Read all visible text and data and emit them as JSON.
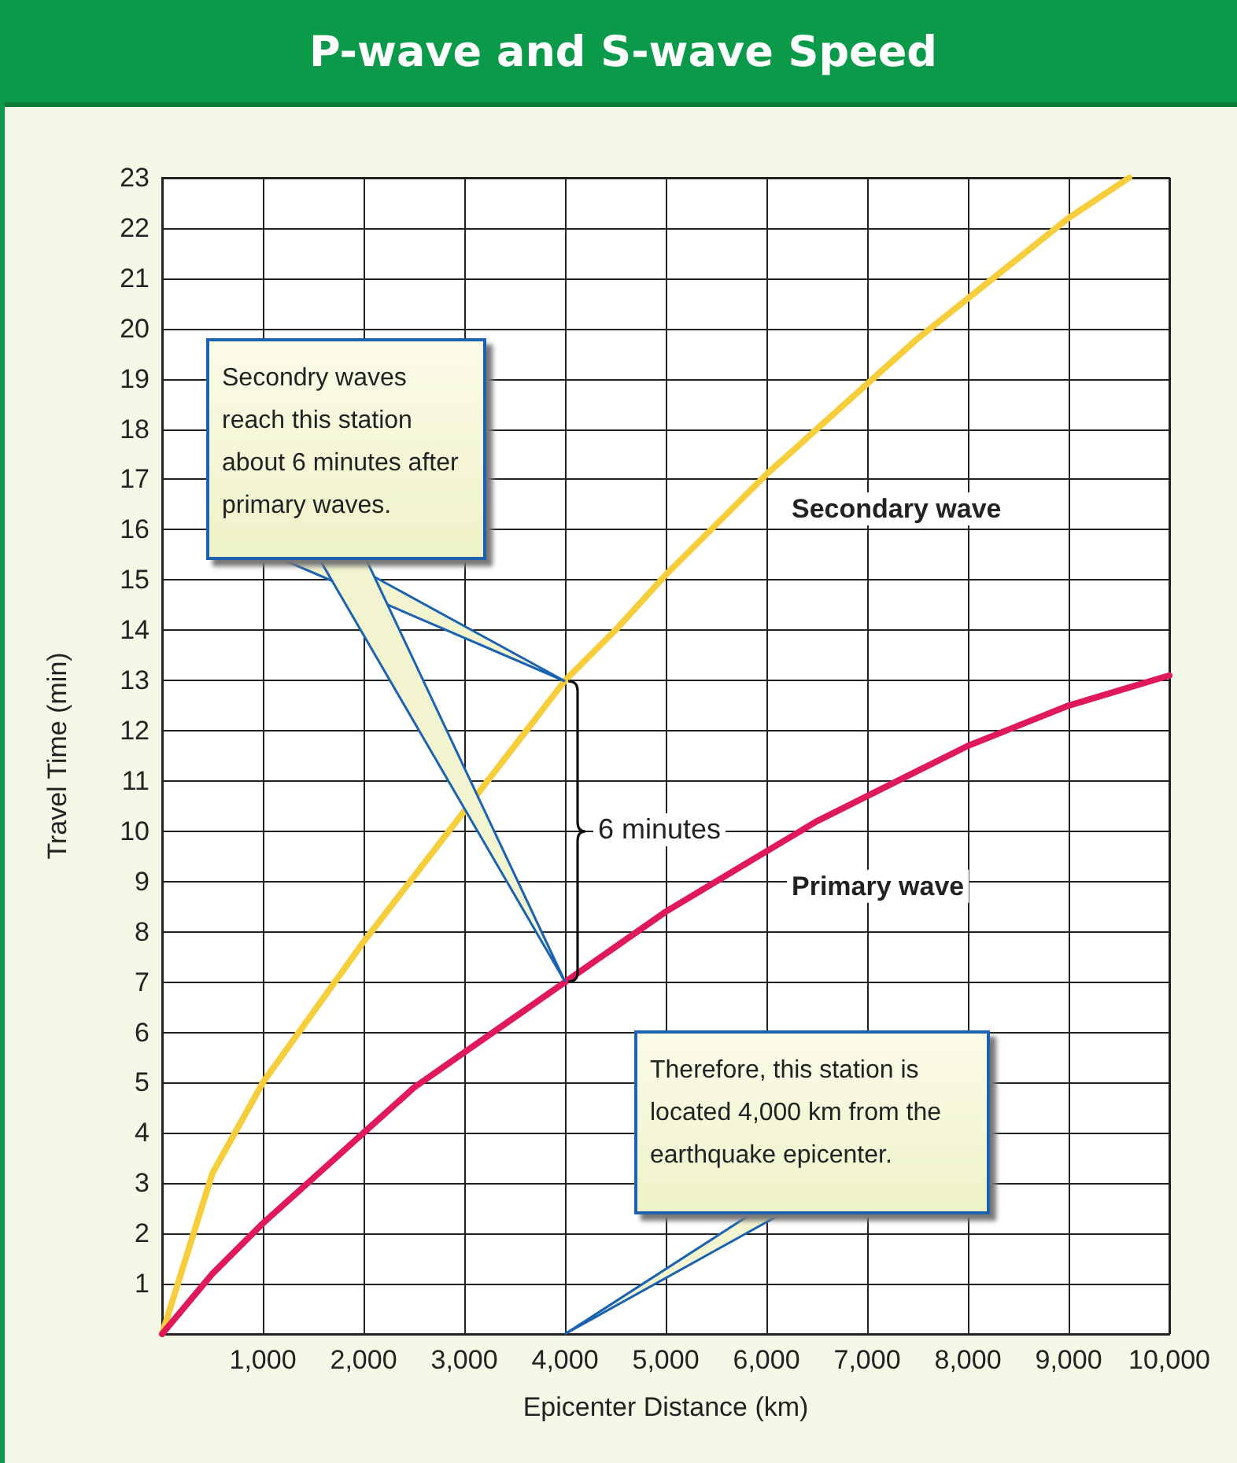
{
  "chart_data": {
    "type": "line",
    "title": "P-wave and S-wave Speed",
    "xlabel": "Epicenter Distance (km)",
    "ylabel": "Travel Time (min)",
    "xlim": [
      0,
      10000
    ],
    "ylim": [
      0,
      23
    ],
    "xticks": [
      {
        "value": 0,
        "label": null
      },
      {
        "value": 1000,
        "label": "1,000"
      },
      {
        "value": 2000,
        "label": "2,000"
      },
      {
        "value": 3000,
        "label": "3,000"
      },
      {
        "value": 4000,
        "label": "4,000"
      },
      {
        "value": 5000,
        "label": "5,000"
      },
      {
        "value": 6000,
        "label": "6,000"
      },
      {
        "value": 7000,
        "label": "7,000"
      },
      {
        "value": 8000,
        "label": "8,000"
      },
      {
        "value": 9000,
        "label": "9,000"
      },
      {
        "value": 10000,
        "label": "10,000"
      }
    ],
    "yticks": [
      {
        "value": 0,
        "label": null
      },
      1,
      2,
      3,
      4,
      5,
      6,
      7,
      8,
      9,
      10,
      11,
      12,
      13,
      14,
      15,
      16,
      17,
      18,
      19,
      20,
      21,
      22,
      23
    ],
    "grid": true,
    "legend": false,
    "marker": "none",
    "line_style": "solid",
    "series": [
      {
        "name": "Secondary wave",
        "color": "#f6cd3a",
        "x": [
          0,
          500,
          1000,
          1500,
          2000,
          2500,
          3000,
          3500,
          4000,
          4500,
          5000,
          5500,
          6000,
          6500,
          7000,
          7500,
          8000,
          8500,
          9000,
          9600
        ],
        "values": [
          0,
          3.2,
          5.0,
          6.4,
          7.8,
          9.1,
          10.4,
          11.7,
          13.0,
          14.0,
          15.1,
          16.1,
          17.1,
          18.0,
          18.9,
          19.8,
          20.6,
          21.4,
          22.2,
          23.0
        ]
      },
      {
        "name": "Primary wave",
        "color": "#e0195a",
        "x": [
          0,
          500,
          1000,
          1500,
          2000,
          2500,
          3000,
          3500,
          4000,
          4500,
          5000,
          5500,
          6000,
          6500,
          7000,
          7500,
          8000,
          8500,
          9000,
          9500,
          10000
        ],
        "values": [
          0,
          1.2,
          2.2,
          3.1,
          4.0,
          4.9,
          5.6,
          6.3,
          7.0,
          7.7,
          8.4,
          9.0,
          9.6,
          10.2,
          10.7,
          11.2,
          11.7,
          12.1,
          12.5,
          12.8,
          13.1
        ]
      }
    ],
    "annotations": [
      "Secondry waves reach this station about 6 minutes after primary waves.",
      "6 minutes",
      "Therefore, this station is located 4,000  km from the earthquake epicenter."
    ]
  }
}
